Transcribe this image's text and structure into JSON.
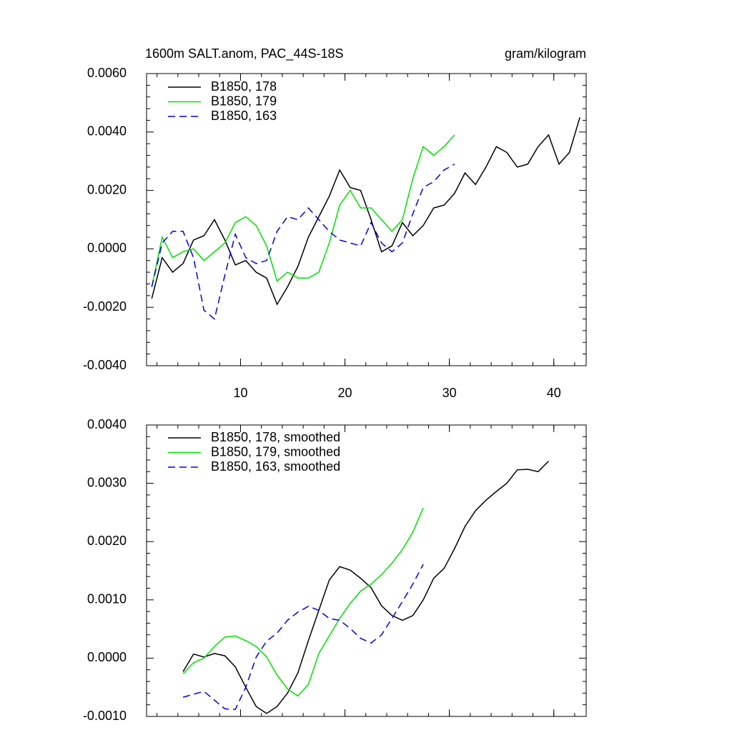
{
  "chart_data": [
    {
      "type": "line",
      "title": "1600m SALT.anom, PAC_44S-18S",
      "units": "gram/kilogram",
      "xlim": [
        1,
        43.1
      ],
      "xticks": [
        10,
        20,
        30,
        40
      ],
      "ylim": [
        -0.004,
        0.006
      ],
      "yticks": [
        {
          "value": -0.004,
          "label": "-0.0040"
        },
        {
          "value": -0.002,
          "label": "-0.0020"
        },
        {
          "value": 0,
          "label": "0.0000"
        },
        {
          "value": 0.002,
          "label": "0.0020"
        },
        {
          "value": 0.004,
          "label": "0.0040"
        },
        {
          "value": 0.006,
          "label": "0.0060"
        }
      ],
      "series": [
        {
          "name": "B1850, 178",
          "color": "#000000",
          "dash": false,
          "x": [
            1.5,
            2.5,
            3.5,
            4.5,
            5.5,
            6.5,
            7.5,
            8.5,
            9.5,
            10.5,
            11.5,
            12.5,
            13.5,
            14.5,
            15.5,
            16.5,
            17.5,
            18.5,
            19.5,
            20.5,
            21.5,
            22.5,
            23.5,
            24.5,
            25.5,
            26.5,
            27.5,
            28.5,
            29.5,
            30.5,
            31.5,
            32.5,
            33.5,
            34.5,
            35.5,
            36.5,
            37.5,
            38.5,
            39.5,
            40.5,
            41.5,
            42.5
          ],
          "values": [
            -0.0017,
            -0.0003,
            -0.0008,
            -0.0005,
            0.0003,
            0.00045,
            0.001,
            0.0003,
            -0.00055,
            -0.0004,
            -0.0008,
            -0.001,
            -0.0019,
            -0.0013,
            -0.0006,
            0.0004,
            0.0011,
            0.0018,
            0.0027,
            0.0021,
            0.002,
            0.001,
            -0.0001,
            0.0001,
            0.0009,
            0.00045,
            0.0008,
            0.0014,
            0.0015,
            0.0019,
            0.0026,
            0.0022,
            0.0028,
            0.0035,
            0.0033,
            0.0028,
            0.0029,
            0.0035,
            0.0039,
            0.0029,
            0.0033,
            0.0045
          ]
        },
        {
          "name": "B1850, 179",
          "color": "#00e000",
          "dash": false,
          "x": [
            1.5,
            2.5,
            3.5,
            4.5,
            5.5,
            6.5,
            7.5,
            8.5,
            9.5,
            10.5,
            11.5,
            12.5,
            13.5,
            14.5,
            15.5,
            16.5,
            17.5,
            18.5,
            19.5,
            20.5,
            21.5,
            22.5,
            23.5,
            24.5,
            25.5,
            26.5,
            27.5,
            28.5,
            29.5,
            30.5
          ],
          "values": [
            -0.0013,
            0.0004,
            -0.0003,
            -0.0001,
            0.0,
            -0.0004,
            -0.0001,
            0.0002,
            0.0009,
            0.0011,
            0.0008,
            0.0001,
            -0.0011,
            -0.0008,
            -0.001,
            -0.001,
            -0.0008,
            0.0002,
            0.0015,
            0.002,
            0.0014,
            0.0014,
            0.001,
            0.0006,
            0.001,
            0.0024,
            0.0035,
            0.0032,
            0.0035,
            0.0039
          ]
        },
        {
          "name": "B1850, 163",
          "color": "#0000e0",
          "dash": true,
          "x": [
            1.5,
            2.5,
            3.5,
            4.5,
            5.5,
            6.5,
            7.5,
            8.5,
            9.5,
            10.5,
            11.5,
            12.5,
            13.5,
            14.5,
            15.5,
            16.5,
            17.5,
            18.5,
            19.5,
            20.5,
            21.5,
            22.5,
            23.5,
            24.5,
            25.5,
            26.5,
            27.5,
            28.5,
            29.5,
            30.5
          ],
          "values": [
            -0.0013,
            0.0002,
            0.0006,
            0.0006,
            -0.0003,
            -0.0021,
            -0.0024,
            -0.0009,
            0.0005,
            -0.0003,
            -0.0005,
            -0.0004,
            0.0006,
            0.0011,
            0.001,
            0.0014,
            0.001,
            0.0006,
            0.0003,
            0.0002,
            0.0001,
            0.0009,
            0.0002,
            -0.0001,
            0.0002,
            0.0012,
            0.0021,
            0.0023,
            0.0027,
            0.0029
          ]
        }
      ]
    },
    {
      "type": "line",
      "xlim": [
        1,
        43.1
      ],
      "xticks": [
        10,
        20,
        30,
        40
      ],
      "ylim": [
        -0.001,
        0.004
      ],
      "yticks": [
        {
          "value": -0.001,
          "label": "-0.0010"
        },
        {
          "value": 0,
          "label": "0.0000"
        },
        {
          "value": 0.001,
          "label": "0.0010"
        },
        {
          "value": 0.002,
          "label": "0.0020"
        },
        {
          "value": 0.003,
          "label": "0.0030"
        },
        {
          "value": 0.004,
          "label": "0.0040"
        }
      ],
      "series": [
        {
          "name": "B1850, 178, smoothed",
          "color": "#000000",
          "dash": false,
          "x": [
            4.5,
            5.5,
            6.5,
            7.5,
            8.5,
            9.5,
            10.5,
            11.5,
            12.5,
            13.5,
            14.5,
            15.5,
            16.5,
            17.5,
            18.5,
            19.5,
            20.5,
            21.5,
            22.5,
            23.5,
            24.5,
            25.5,
            26.5,
            27.5,
            28.5,
            29.5,
            30.5,
            31.5,
            32.5,
            33.5,
            34.5,
            35.5,
            36.5,
            37.5,
            38.5,
            39.5
          ],
          "values": [
            -0.00023,
            7e-05,
            2e-05,
            8e-05,
            4e-05,
            -0.00015,
            -0.0005,
            -0.00083,
            -0.00095,
            -0.00083,
            -0.0006,
            -0.00025,
            0.0003,
            0.00082,
            0.00134,
            0.00157,
            0.00151,
            0.00137,
            0.00121,
            0.0009,
            0.00073,
            0.00065,
            0.00073,
            0.001,
            0.00137,
            0.00154,
            0.00188,
            0.00226,
            0.00253,
            0.00271,
            0.00286,
            0.003,
            0.00323,
            0.00324,
            0.0032,
            0.00338
          ]
        },
        {
          "name": "B1850, 179, smoothed",
          "color": "#00e000",
          "dash": false,
          "x": [
            4.5,
            5.5,
            6.5,
            7.5,
            8.5,
            9.5,
            10.5,
            11.5,
            12.5,
            13.5,
            14.5,
            15.5,
            16.5,
            17.5,
            18.5,
            19.5,
            20.5,
            21.5,
            22.5,
            23.5,
            24.5,
            25.5,
            26.5,
            27.5
          ],
          "values": [
            -0.00027,
            -8e-05,
            0.0,
            0.0002,
            0.00036,
            0.00038,
            0.0003,
            0.0002,
            2e-05,
            -0.00029,
            -0.00053,
            -0.00065,
            -0.00045,
            8e-05,
            0.00038,
            0.00068,
            0.00094,
            0.00115,
            0.00127,
            0.00143,
            0.00163,
            0.00186,
            0.00216,
            0.00258
          ]
        },
        {
          "name": "B1850, 163, smoothed",
          "color": "#0000e0",
          "dash": true,
          "x": [
            4.5,
            5.5,
            6.5,
            7.5,
            8.5,
            9.5,
            10.5,
            11.5,
            12.5,
            13.5,
            14.5,
            15.5,
            16.5,
            17.5,
            18.5,
            19.5,
            20.5,
            21.5,
            22.5,
            23.5,
            24.5,
            25.5,
            26.5,
            27.5
          ],
          "values": [
            -0.00067,
            -0.00062,
            -0.00057,
            -0.00072,
            -0.00087,
            -0.00088,
            -0.0005,
            2e-05,
            0.00029,
            0.00043,
            0.00065,
            0.00079,
            0.00089,
            0.00082,
            0.00068,
            0.00065,
            0.00051,
            0.00034,
            0.00026,
            0.0004,
            0.00068,
            0.00097,
            0.00127,
            0.00161
          ]
        }
      ]
    }
  ]
}
